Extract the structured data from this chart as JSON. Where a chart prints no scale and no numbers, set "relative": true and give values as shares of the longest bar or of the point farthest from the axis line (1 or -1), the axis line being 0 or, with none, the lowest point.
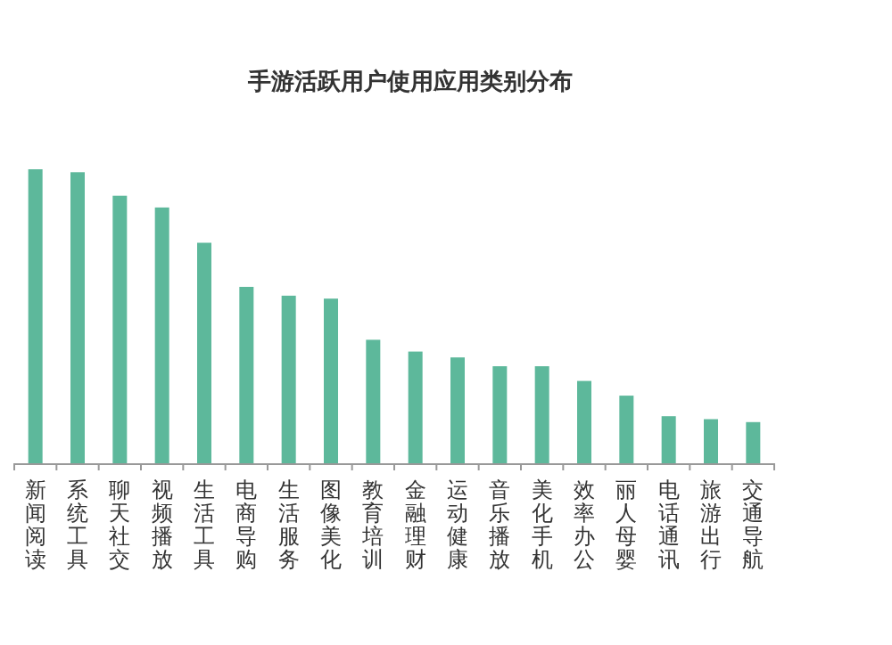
{
  "chart_data": {
    "type": "bar",
    "title": "手游活跃用户使用应用类别分布",
    "relative": true,
    "color": "#5db89b",
    "categories": [
      "新闻阅读",
      "系统工具",
      "聊天社交",
      "视频播放",
      "生活工具",
      "电商导购",
      "生活服务",
      "图像美化",
      "教育培训",
      "金融理财",
      "运动健康",
      "音乐播放",
      "美化手机",
      "效率办公",
      "丽人母婴",
      "电话通讯",
      "旅游出行",
      "交通导航"
    ],
    "values": [
      1,
      0.99,
      0.91,
      0.87,
      0.75,
      0.6,
      0.57,
      0.56,
      0.42,
      0.38,
      0.36,
      0.33,
      0.33,
      0.28,
      0.23,
      0.16,
      0.15,
      0.14
    ]
  }
}
